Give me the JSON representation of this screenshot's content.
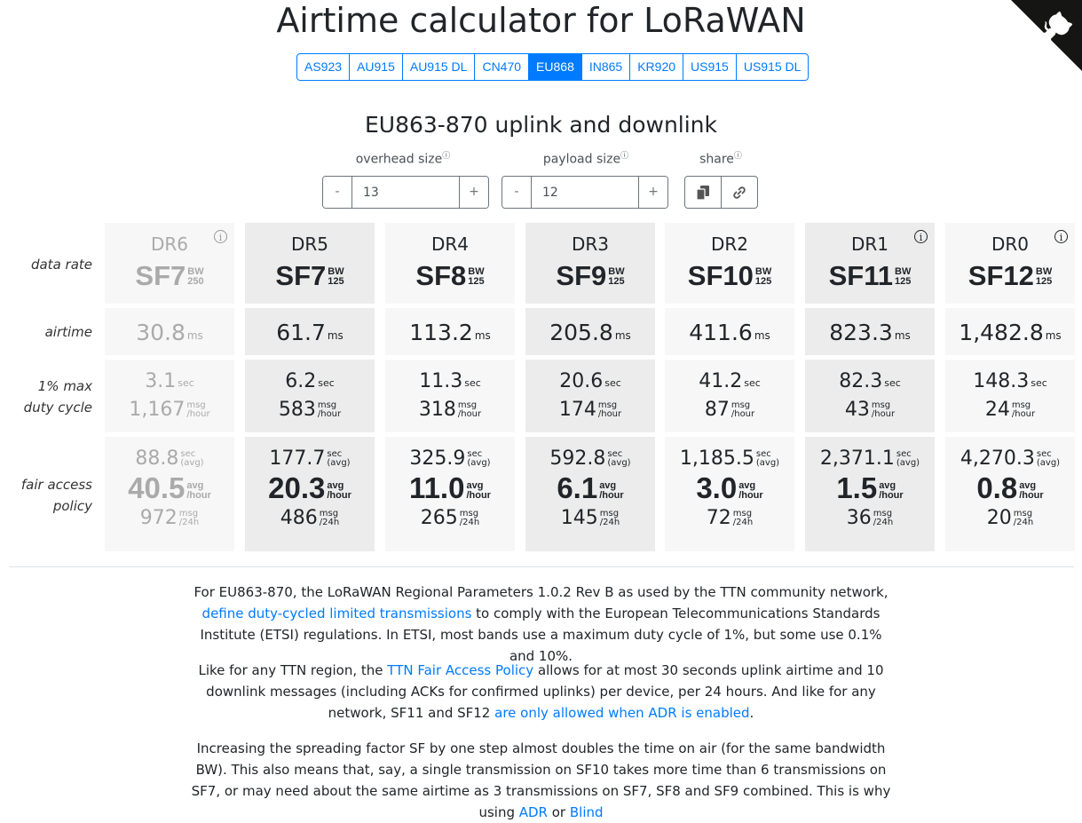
{
  "title": "Airtime calculator for LoRaWAN",
  "regions": [
    {
      "label": "AS923",
      "active": false
    },
    {
      "label": "AU915",
      "active": false
    },
    {
      "label": "AU915 DL",
      "active": false
    },
    {
      "label": "CN470",
      "active": false
    },
    {
      "label": "EU868",
      "active": true
    },
    {
      "label": "IN865",
      "active": false
    },
    {
      "label": "KR920",
      "active": false
    },
    {
      "label": "US915",
      "active": false
    },
    {
      "label": "US915 DL",
      "active": false
    }
  ],
  "subtitle": "EU863-870 uplink and downlink",
  "controls": {
    "overhead_label": "overhead size",
    "overhead_value": "13",
    "payload_label": "payload size",
    "payload_value": "12",
    "share_label": "share",
    "info_glyph": "ⓘ",
    "minus": "-",
    "plus": "+"
  },
  "row_labels": {
    "data_rate": "data rate",
    "airtime": "airtime",
    "duty_cycle_1": "1% max",
    "duty_cycle_2": "duty cycle",
    "fair_access_1": "fair access",
    "fair_access_2": "policy"
  },
  "units": {
    "bw": "BW",
    "ms": "ms",
    "sec": "sec",
    "msg": "msg",
    "per_hour": "/hour",
    "avg_paren": "(avg)",
    "avg": "avg",
    "per_24h": "/24h"
  },
  "columns": [
    {
      "dr": "DR6",
      "sf": "SF7",
      "bw": "250",
      "info": true,
      "style": "dim",
      "airtime": "30.8",
      "dc_sec": "3.1",
      "dc_msg": "1,167",
      "fap_sec": "88.8",
      "fap_avg": "40.5",
      "fap_msg": "972"
    },
    {
      "dr": "DR5",
      "sf": "SF7",
      "bw": "125",
      "info": false,
      "style": "shade",
      "airtime": "61.7",
      "dc_sec": "6.2",
      "dc_msg": "583",
      "fap_sec": "177.7",
      "fap_avg": "20.3",
      "fap_msg": "486"
    },
    {
      "dr": "DR4",
      "sf": "SF8",
      "bw": "125",
      "info": false,
      "style": "light",
      "airtime": "113.2",
      "dc_sec": "11.3",
      "dc_msg": "318",
      "fap_sec": "325.9",
      "fap_avg": "11.0",
      "fap_msg": "265"
    },
    {
      "dr": "DR3",
      "sf": "SF9",
      "bw": "125",
      "info": false,
      "style": "shade",
      "airtime": "205.8",
      "dc_sec": "20.6",
      "dc_msg": "174",
      "fap_sec": "592.8",
      "fap_avg": "6.1",
      "fap_msg": "145"
    },
    {
      "dr": "DR2",
      "sf": "SF10",
      "bw": "125",
      "info": false,
      "style": "light",
      "airtime": "411.6",
      "dc_sec": "41.2",
      "dc_msg": "87",
      "fap_sec": "1,185.5",
      "fap_avg": "3.0",
      "fap_msg": "72"
    },
    {
      "dr": "DR1",
      "sf": "SF11",
      "bw": "125",
      "info": true,
      "style": "shade",
      "airtime": "823.3",
      "dc_sec": "82.3",
      "dc_msg": "43",
      "fap_sec": "2,371.1",
      "fap_avg": "1.5",
      "fap_msg": "36"
    },
    {
      "dr": "DR0",
      "sf": "SF12",
      "bw": "125",
      "info": true,
      "style": "light",
      "airtime": "1,482.8",
      "dc_sec": "148.3",
      "dc_msg": "24",
      "fap_sec": "4,270.3",
      "fap_avg": "0.8",
      "fap_msg": "20"
    }
  ],
  "paragraphs": {
    "p1": {
      "t1": "For EU863-870, the LoRaWAN Regional Parameters 1.0.2 Rev B as used by the TTN community network, ",
      "link1": "define duty-cycled limited transmissions",
      "t2": " to comply with the European Telecommunications Standards Institute (ETSI) regulations. In ETSI, most bands use a maximum duty cycle of 1%, but some use 0.1% and 10%."
    },
    "p2": {
      "t1": "Like for any TTN region, the ",
      "link1": "TTN Fair Access Policy",
      "t2": " allows for at most 30 seconds uplink airtime and 10 downlink messages (including ACKs for confirmed uplinks) per device, per 24 hours. And like for any network, SF11 and SF12 ",
      "link2": "are only allowed when ADR is enabled",
      "t3": "."
    },
    "p3": {
      "t1": "Increasing the spreading factor SF by one step almost doubles the time on air (for the same bandwidth BW). This also means that, say, a single transmission on SF10 takes more time than 6 transmissions on SF7, or may need about the same airtime as 3 transmissions on SF7, SF8 and SF9 combined. This is why using ",
      "link1": "ADR",
      "t2": " or ",
      "link2": "Blind"
    }
  },
  "colors": {
    "accent": "#007bff",
    "shade": "#ececec",
    "light": "#f7f7f7",
    "dim_text": "#aaaaaa"
  },
  "icons": {
    "corner": "github-octocat-icon",
    "copy": "copy-icon",
    "link": "link-icon",
    "info": "info-icon"
  }
}
